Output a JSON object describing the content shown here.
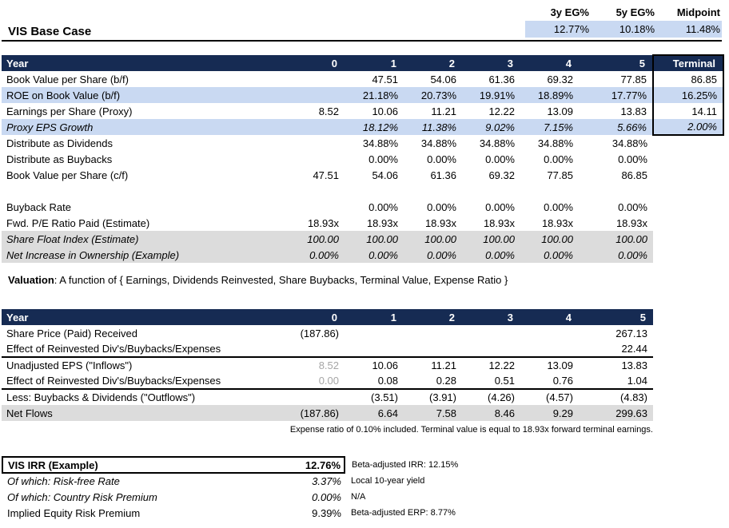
{
  "header": {
    "title": "VIS Base Case",
    "metrics": [
      {
        "label": "3y EG%",
        "value": "12.77%"
      },
      {
        "label": "5y EG%",
        "value": "10.18%"
      },
      {
        "label": "Midpoint",
        "value": "11.48%"
      }
    ]
  },
  "model_table": {
    "header": [
      "Year",
      "0",
      "1",
      "2",
      "3",
      "4",
      "5",
      "Terminal"
    ],
    "rows": [
      {
        "label": "Book Value per Share (b/f)",
        "values": [
          "",
          "47.51",
          "54.06",
          "61.36",
          "69.32",
          "77.85"
        ],
        "terminal": "86.85",
        "highlight": null,
        "italic": false,
        "box": "side"
      },
      {
        "label": "ROE on Book Value (b/f)",
        "values": [
          "",
          "21.18%",
          "20.73%",
          "19.91%",
          "18.89%",
          "17.77%"
        ],
        "terminal": "16.25%",
        "highlight": "blue",
        "italic": false,
        "box": "side"
      },
      {
        "label": "Earnings per Share (Proxy)",
        "values": [
          "8.52",
          "10.06",
          "11.21",
          "12.22",
          "13.09",
          "13.83"
        ],
        "terminal": "14.11",
        "highlight": null,
        "italic": false,
        "box": "side"
      },
      {
        "label": "Proxy EPS Growth",
        "values": [
          "",
          "18.12%",
          "11.38%",
          "9.02%",
          "7.15%",
          "5.66%"
        ],
        "terminal": "2.00%",
        "highlight": "blue",
        "italic": true,
        "box": "side-bottom"
      },
      {
        "label": "Distribute as Dividends",
        "values": [
          "",
          "34.88%",
          "34.88%",
          "34.88%",
          "34.88%",
          "34.88%"
        ],
        "terminal": "",
        "highlight": null,
        "italic": false,
        "box": null
      },
      {
        "label": "Distribute as Buybacks",
        "values": [
          "",
          "0.00%",
          "0.00%",
          "0.00%",
          "0.00%",
          "0.00%"
        ],
        "terminal": "",
        "highlight": null,
        "italic": false,
        "box": null
      },
      {
        "label": "Book Value per Share (c/f)",
        "values": [
          "47.51",
          "54.06",
          "61.36",
          "69.32",
          "77.85",
          "86.85"
        ],
        "terminal": "",
        "highlight": null,
        "italic": false,
        "box": null
      },
      {
        "label": "",
        "values": [
          "",
          "",
          "",
          "",
          "",
          ""
        ],
        "terminal": "",
        "highlight": null,
        "italic": false,
        "box": null
      },
      {
        "label": "Buyback Rate",
        "values": [
          "",
          "0.00%",
          "0.00%",
          "0.00%",
          "0.00%",
          "0.00%"
        ],
        "terminal": "",
        "highlight": null,
        "italic": false,
        "box": null
      },
      {
        "label": "Fwd. P/E Ratio Paid (Estimate)",
        "values": [
          "18.93x",
          "18.93x",
          "18.93x",
          "18.93x",
          "18.93x",
          "18.93x"
        ],
        "terminal": "",
        "highlight": null,
        "italic": false,
        "box": null
      },
      {
        "label": "Share Float Index (Estimate)",
        "values": [
          "100.00",
          "100.00",
          "100.00",
          "100.00",
          "100.00",
          "100.00"
        ],
        "terminal": "",
        "highlight": "gray",
        "italic": true,
        "box": null
      },
      {
        "label": "Net Increase in Ownership (Example)",
        "values": [
          "0.00%",
          "0.00%",
          "0.00%",
          "0.00%",
          "0.00%",
          "0.00%"
        ],
        "terminal": "",
        "highlight": "gray",
        "italic": true,
        "box": null
      }
    ]
  },
  "valuation_note": {
    "bold": "Valuation",
    "rest": ": A function of { Earnings, Dividends Reinvested, Share Buybacks, Terminal Value, Expense Ratio }"
  },
  "valuation_table": {
    "header": [
      "Year",
      "0",
      "1",
      "2",
      "3",
      "4",
      "5"
    ],
    "rows": [
      {
        "label": "Share Price (Paid) Received",
        "values": [
          "(187.86)",
          "",
          "",
          "",
          "",
          "267.13"
        ],
        "muted_first": false,
        "thick_bottom": false,
        "gray_row": false
      },
      {
        "label": "Effect of Reinvested Div's/Buybacks/Expenses",
        "values": [
          "",
          "",
          "",
          "",
          "",
          "22.44"
        ],
        "muted_first": false,
        "thick_bottom": true,
        "gray_row": false
      },
      {
        "label": "Unadjusted EPS (\"Inflows\")",
        "values": [
          "8.52",
          "10.06",
          "11.21",
          "12.22",
          "13.09",
          "13.83"
        ],
        "muted_first": true,
        "thick_bottom": false,
        "gray_row": false
      },
      {
        "label": "Effect of Reinvested Div's/Buybacks/Expenses",
        "values": [
          "0.00",
          "0.08",
          "0.28",
          "0.51",
          "0.76",
          "1.04"
        ],
        "muted_first": true,
        "thick_bottom": true,
        "gray_row": false
      },
      {
        "label": "Less: Buybacks & Dividends (\"Outflows\")",
        "values": [
          "",
          "(3.51)",
          "(3.91)",
          "(4.26)",
          "(4.57)",
          "(4.83)"
        ],
        "muted_first": false,
        "thick_bottom": false,
        "gray_row": false
      },
      {
        "label": "Net Flows",
        "values": [
          "(187.86)",
          "6.64",
          "7.58",
          "8.46",
          "9.29",
          "299.63"
        ],
        "muted_first": false,
        "thick_bottom": false,
        "gray_row": true
      }
    ]
  },
  "footnote": "Expense ratio of 0.10% included. Terminal value is equal to 18.93x forward terminal earnings.",
  "irr_section": {
    "rows": [
      {
        "label": "VIS IRR (Example)",
        "value": "12.76%",
        "note": "Beta-adjusted IRR: 12.15%",
        "boxed": true,
        "bold": true,
        "italic": false
      },
      {
        "label": "Of which: Risk-free Rate",
        "value": "3.37%",
        "note": "Local 10-year yield",
        "boxed": false,
        "bold": false,
        "italic": true
      },
      {
        "label": "Of which: Country Risk Premium",
        "value": "0.00%",
        "note": "N/A",
        "boxed": false,
        "bold": false,
        "italic": true
      },
      {
        "label": "Implied Equity Risk Premium",
        "value": "9.39%",
        "note": "Beta-adjusted ERP: 8.77%",
        "boxed": false,
        "bold": false,
        "italic": false
      }
    ]
  },
  "colors": {
    "header_bg": "#162B53",
    "highlight_blue": "#C9D9F2",
    "band_gray": "#DCDCDC",
    "muted_text": "#A6A6A6"
  }
}
